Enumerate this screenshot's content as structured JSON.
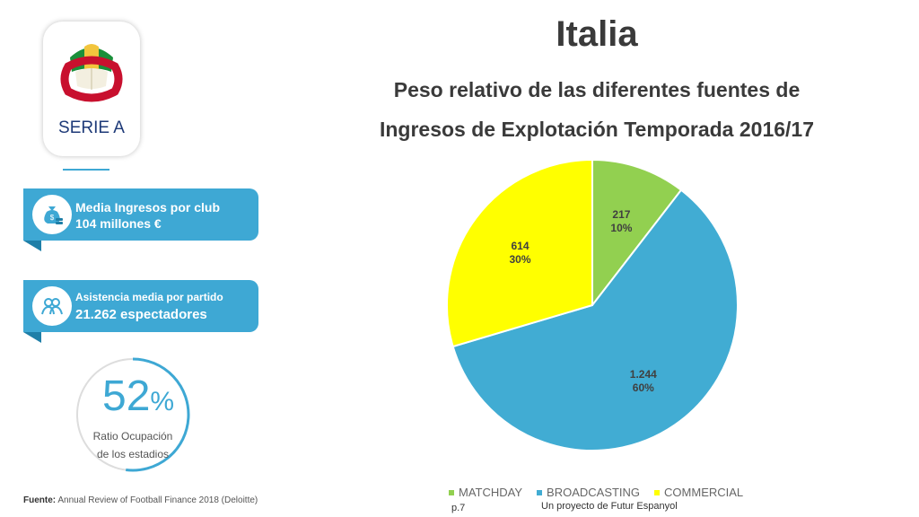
{
  "header": {
    "title": "Italia",
    "subtitle_line1": "Peso relativo de las diferentes fuentes de",
    "subtitle_line2": "Ingresos de Explotación Temporada 2016/17"
  },
  "logo": {
    "text": "SERIE A"
  },
  "stats": {
    "income_label": "Media Ingresos por club",
    "income_value": "104 millones €",
    "attendance_label": "Asistencia media por partido",
    "attendance_value": "21.262 espectadores",
    "occupancy_value": "52",
    "occupancy_unit": "%",
    "occupancy_fraction": 0.52,
    "occupancy_label_1": "Ratio Ocupación",
    "occupancy_label_2": "de los estadios"
  },
  "footer": {
    "source_label": "Fuente:",
    "source_text": "Annual Review of Football Finance 2018 (Deloitte)",
    "page": "p.7",
    "project": "Un proyecto de Futur Espanyol"
  },
  "colors": {
    "matchday": "#92d050",
    "broadcasting": "#41acd3",
    "commercial": "#ffff00",
    "accent": "#3ea8d4"
  },
  "chart_data": {
    "type": "pie",
    "categories": [
      "MATCHDAY",
      "BROADCASTING",
      "COMMERCIAL"
    ],
    "values": [
      217,
      1244,
      614
    ],
    "value_labels": [
      "217",
      "1.244",
      "614"
    ],
    "percent_labels": [
      "10%",
      "60%",
      "30%"
    ],
    "colors": [
      "#92d050",
      "#41acd3",
      "#ffff00"
    ],
    "legend_position": "bottom"
  }
}
